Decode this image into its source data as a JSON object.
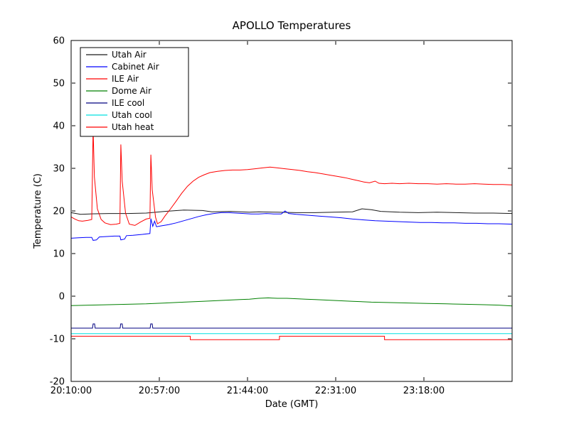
{
  "chart_data": {
    "type": "line",
    "title": "APOLLO Temperatures",
    "xlabel": "Date (GMT)",
    "ylabel": "Temperature (C)",
    "xlim": [
      0,
      235
    ],
    "ylim": [
      -20,
      60
    ],
    "grid": false,
    "legend_position": "upper-left",
    "x_ticks": [
      {
        "t": 0,
        "label": "20:10:00"
      },
      {
        "t": 47,
        "label": "20:57:00"
      },
      {
        "t": 94,
        "label": "21:44:00"
      },
      {
        "t": 141,
        "label": "22:31:00"
      },
      {
        "t": 188,
        "label": "23:18:00"
      }
    ],
    "y_ticks": [
      -20,
      -10,
      0,
      10,
      20,
      30,
      40,
      50,
      60
    ],
    "series": [
      {
        "name": "Utah Air",
        "color": "#1a1a1a",
        "points": [
          [
            0,
            19.6
          ],
          [
            5,
            19.2
          ],
          [
            10,
            19.3
          ],
          [
            20,
            19.4
          ],
          [
            30,
            19.4
          ],
          [
            40,
            19.5
          ],
          [
            50,
            19.9
          ],
          [
            60,
            20.2
          ],
          [
            70,
            20.1
          ],
          [
            75,
            19.8
          ],
          [
            85,
            19.9
          ],
          [
            95,
            19.7
          ],
          [
            100,
            19.8
          ],
          [
            110,
            19.7
          ],
          [
            120,
            19.6
          ],
          [
            130,
            19.6
          ],
          [
            140,
            19.7
          ],
          [
            150,
            19.8
          ],
          [
            155,
            20.5
          ],
          [
            160,
            20.3
          ],
          [
            165,
            19.9
          ],
          [
            175,
            19.7
          ],
          [
            185,
            19.6
          ],
          [
            195,
            19.7
          ],
          [
            205,
            19.6
          ],
          [
            215,
            19.5
          ],
          [
            225,
            19.5
          ],
          [
            235,
            19.4
          ]
        ]
      },
      {
        "name": "Cabinet Air",
        "color": "#0000ff",
        "points": [
          [
            0,
            13.6
          ],
          [
            4,
            13.7
          ],
          [
            8,
            13.8
          ],
          [
            11,
            13.8
          ],
          [
            11.7,
            13.1
          ],
          [
            13.5,
            13.2
          ],
          [
            15,
            13.9
          ],
          [
            19,
            14.0
          ],
          [
            23,
            14.1
          ],
          [
            26,
            14.1
          ],
          [
            26.5,
            13.2
          ],
          [
            28.5,
            13.4
          ],
          [
            29.5,
            14.2
          ],
          [
            33,
            14.3
          ],
          [
            38,
            14.5
          ],
          [
            42,
            14.7
          ],
          [
            42.5,
            18.2
          ],
          [
            43.5,
            16.4
          ],
          [
            44.5,
            17.6
          ],
          [
            45.5,
            16.3
          ],
          [
            48,
            16.5
          ],
          [
            52,
            16.8
          ],
          [
            56,
            17.2
          ],
          [
            60,
            17.7
          ],
          [
            64,
            18.2
          ],
          [
            68,
            18.7
          ],
          [
            72,
            19.1
          ],
          [
            76,
            19.4
          ],
          [
            80,
            19.6
          ],
          [
            84,
            19.6
          ],
          [
            88,
            19.5
          ],
          [
            92,
            19.4
          ],
          [
            96,
            19.3
          ],
          [
            100,
            19.3
          ],
          [
            104,
            19.4
          ],
          [
            108,
            19.3
          ],
          [
            112,
            19.3
          ],
          [
            114,
            20.0
          ],
          [
            116,
            19.4
          ],
          [
            120,
            19.2
          ],
          [
            126,
            19.0
          ],
          [
            132,
            18.8
          ],
          [
            138,
            18.6
          ],
          [
            144,
            18.4
          ],
          [
            150,
            18.1
          ],
          [
            156,
            17.9
          ],
          [
            162,
            17.7
          ],
          [
            168,
            17.6
          ],
          [
            174,
            17.5
          ],
          [
            180,
            17.4
          ],
          [
            186,
            17.3
          ],
          [
            192,
            17.3
          ],
          [
            198,
            17.2
          ],
          [
            204,
            17.2
          ],
          [
            210,
            17.1
          ],
          [
            216,
            17.1
          ],
          [
            222,
            17.0
          ],
          [
            228,
            17.0
          ],
          [
            235,
            16.9
          ]
        ]
      },
      {
        "name": "ILE Air",
        "color": "#ff0000",
        "points": [
          [
            0,
            18.6
          ],
          [
            2,
            18.1
          ],
          [
            4,
            17.7
          ],
          [
            6,
            17.6
          ],
          [
            9,
            17.8
          ],
          [
            11,
            18.0
          ],
          [
            11.7,
            39.5
          ],
          [
            12.4,
            28.0
          ],
          [
            14,
            20.5
          ],
          [
            16,
            18.0
          ],
          [
            18,
            17.2
          ],
          [
            21,
            16.8
          ],
          [
            24,
            16.9
          ],
          [
            26,
            17.1
          ],
          [
            26.5,
            35.6
          ],
          [
            27.2,
            27.0
          ],
          [
            29,
            19.5
          ],
          [
            31,
            16.9
          ],
          [
            34,
            16.6
          ],
          [
            37,
            17.4
          ],
          [
            40,
            18.1
          ],
          [
            42,
            18.3
          ],
          [
            42.5,
            33.2
          ],
          [
            43.2,
            25.0
          ],
          [
            45,
            18.5
          ],
          [
            46,
            17.0
          ],
          [
            48,
            17.5
          ],
          [
            50,
            18.8
          ],
          [
            53,
            20.5
          ],
          [
            56,
            22.3
          ],
          [
            59,
            24.2
          ],
          [
            62,
            25.8
          ],
          [
            65,
            27.0
          ],
          [
            68,
            27.9
          ],
          [
            71,
            28.5
          ],
          [
            74,
            29.0
          ],
          [
            78,
            29.3
          ],
          [
            82,
            29.5
          ],
          [
            86,
            29.6
          ],
          [
            90,
            29.6
          ],
          [
            94,
            29.7
          ],
          [
            98,
            29.9
          ],
          [
            102,
            30.1
          ],
          [
            106,
            30.3
          ],
          [
            110,
            30.1
          ],
          [
            114,
            29.9
          ],
          [
            118,
            29.7
          ],
          [
            122,
            29.5
          ],
          [
            126,
            29.2
          ],
          [
            130,
            29.0
          ],
          [
            134,
            28.7
          ],
          [
            138,
            28.4
          ],
          [
            142,
            28.1
          ],
          [
            146,
            27.8
          ],
          [
            150,
            27.4
          ],
          [
            153,
            27.1
          ],
          [
            156,
            26.8
          ],
          [
            159,
            26.6
          ],
          [
            162,
            27.0
          ],
          [
            164,
            26.5
          ],
          [
            167,
            26.4
          ],
          [
            171,
            26.5
          ],
          [
            175,
            26.4
          ],
          [
            180,
            26.5
          ],
          [
            185,
            26.4
          ],
          [
            190,
            26.4
          ],
          [
            195,
            26.3
          ],
          [
            200,
            26.4
          ],
          [
            205,
            26.3
          ],
          [
            210,
            26.3
          ],
          [
            215,
            26.4
          ],
          [
            220,
            26.3
          ],
          [
            225,
            26.2
          ],
          [
            230,
            26.2
          ],
          [
            235,
            26.1
          ]
        ]
      },
      {
        "name": "Dome Air",
        "color": "#008000",
        "points": [
          [
            0,
            -2.2
          ],
          [
            10,
            -2.1
          ],
          [
            20,
            -2.0
          ],
          [
            30,
            -1.9
          ],
          [
            40,
            -1.8
          ],
          [
            50,
            -1.6
          ],
          [
            60,
            -1.4
          ],
          [
            70,
            -1.2
          ],
          [
            80,
            -1.0
          ],
          [
            90,
            -0.8
          ],
          [
            95,
            -0.7
          ],
          [
            100,
            -0.5
          ],
          [
            105,
            -0.4
          ],
          [
            110,
            -0.5
          ],
          [
            115,
            -0.5
          ],
          [
            120,
            -0.6
          ],
          [
            125,
            -0.7
          ],
          [
            130,
            -0.8
          ],
          [
            140,
            -1.0
          ],
          [
            150,
            -1.2
          ],
          [
            160,
            -1.4
          ],
          [
            170,
            -1.5
          ],
          [
            180,
            -1.6
          ],
          [
            190,
            -1.7
          ],
          [
            200,
            -1.8
          ],
          [
            210,
            -1.9
          ],
          [
            220,
            -2.0
          ],
          [
            228,
            -2.1
          ],
          [
            235,
            -2.3
          ]
        ]
      },
      {
        "name": "ILE cool",
        "color": "#000080",
        "points": [
          [
            0,
            -7.5
          ],
          [
            11.4,
            -7.5
          ],
          [
            11.7,
            -6.5
          ],
          [
            12.5,
            -6.5
          ],
          [
            12.8,
            -7.5
          ],
          [
            26.1,
            -7.5
          ],
          [
            26.4,
            -6.5
          ],
          [
            27.2,
            -6.5
          ],
          [
            27.5,
            -7.5
          ],
          [
            42.1,
            -7.5
          ],
          [
            42.4,
            -6.5
          ],
          [
            43.2,
            -6.5
          ],
          [
            43.5,
            -7.5
          ],
          [
            235,
            -7.5
          ]
        ]
      },
      {
        "name": "Utah cool",
        "color": "#00e0e0",
        "points": [
          [
            0,
            -8.8
          ],
          [
            235,
            -8.8
          ]
        ]
      },
      {
        "name": "Utah heat",
        "color": "#ff0000",
        "points": [
          [
            0,
            -9.4
          ],
          [
            63.5,
            -9.4
          ],
          [
            63.5,
            -10.2
          ],
          [
            111,
            -10.2
          ],
          [
            111,
            -9.4
          ],
          [
            167,
            -9.4
          ],
          [
            167,
            -10.2
          ],
          [
            235,
            -10.2
          ]
        ]
      }
    ]
  }
}
